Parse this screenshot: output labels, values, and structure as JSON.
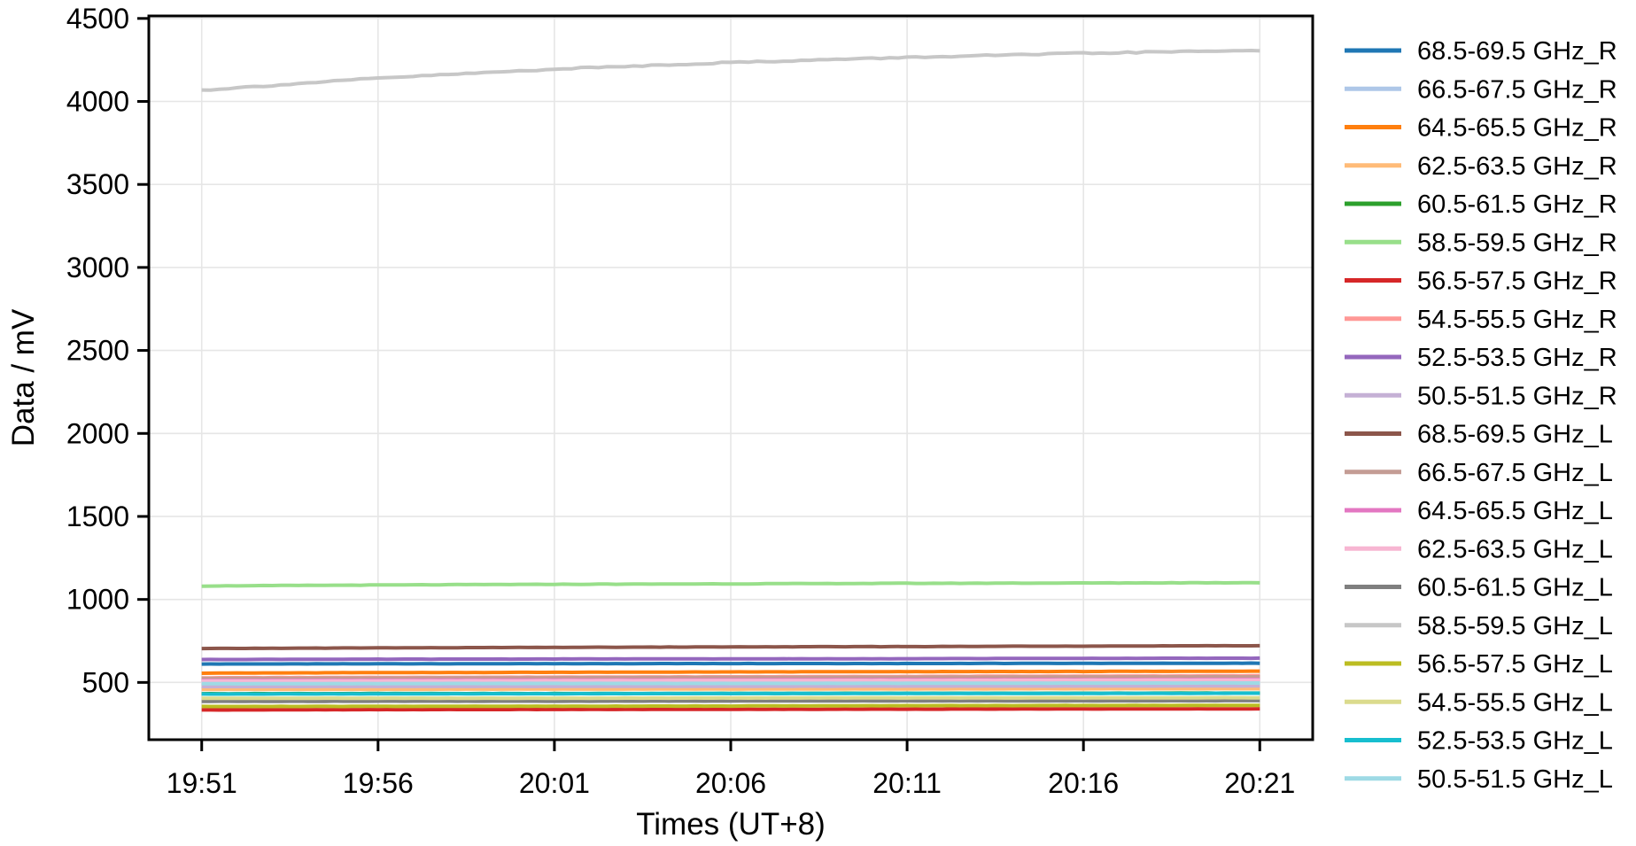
{
  "chart_data": {
    "type": "line",
    "title": "",
    "xlabel": "Times (UT+8)",
    "ylabel": "Data / mV",
    "x_tick_labels": [
      "19:51",
      "19:56",
      "20:01",
      "20:06",
      "20:11",
      "20:16",
      "20:21"
    ],
    "x_tick_minutes": [
      0,
      5,
      10,
      15,
      20,
      25,
      30
    ],
    "xlim_minutes": [
      -1.5,
      31.5
    ],
    "y_ticks": [
      500,
      1000,
      1500,
      2000,
      2500,
      3000,
      3500,
      4000,
      4500
    ],
    "ylim": [
      155,
      4515
    ],
    "grid": true,
    "legend_position": "right",
    "series": [
      {
        "name": "68.5-69.5 GHz_R",
        "color": "#1f77b4",
        "noise": 0.5,
        "values": [
          611,
          612,
          613,
          614,
          614,
          615,
          616
        ]
      },
      {
        "name": "66.5-67.5 GHz_R",
        "color": "#aec7e8",
        "noise": 0.5,
        "values": [
          495,
          496,
          497,
          498,
          499,
          499,
          500
        ]
      },
      {
        "name": "64.5-65.5 GHz_R",
        "color": "#ff7f0e",
        "noise": 0.6,
        "values": [
          556,
          559,
          561,
          563,
          565,
          566,
          568
        ]
      },
      {
        "name": "62.5-63.5 GHz_R",
        "color": "#ffbb78",
        "noise": 0.5,
        "values": [
          458,
          459,
          460,
          460,
          461,
          462,
          462
        ]
      },
      {
        "name": "60.5-61.5 GHz_R",
        "color": "#2ca02c",
        "noise": 0.5,
        "values": [
          432,
          433,
          433,
          434,
          435,
          435,
          436
        ]
      },
      {
        "name": "58.5-59.5 GHz_R",
        "color": "#98df8a",
        "noise": 1.2,
        "values": [
          1081,
          1087,
          1091,
          1094,
          1097,
          1099,
          1101
        ]
      },
      {
        "name": "56.5-57.5 GHz_R",
        "color": "#d62728",
        "noise": 0.5,
        "values": [
          334,
          336,
          337,
          338,
          339,
          340,
          341
        ]
      },
      {
        "name": "54.5-55.5 GHz_R",
        "color": "#ff9896",
        "noise": 0.6,
        "values": [
          528,
          530,
          532,
          534,
          536,
          538,
          540
        ]
      },
      {
        "name": "52.5-53.5 GHz_R",
        "color": "#9467bd",
        "noise": 0.5,
        "values": [
          638,
          640,
          641,
          642,
          643,
          645,
          646
        ]
      },
      {
        "name": "50.5-51.5 GHz_R",
        "color": "#c5b0d5",
        "noise": 0.5,
        "values": [
          475,
          476,
          476,
          477,
          478,
          478,
          479
        ]
      },
      {
        "name": "68.5-69.5 GHz_L",
        "color": "#8c564b",
        "noise": 0.8,
        "values": [
          704,
          708,
          711,
          714,
          716,
          719,
          721
        ]
      },
      {
        "name": "66.5-67.5 GHz_L",
        "color": "#c49c94",
        "noise": 0.5,
        "values": [
          524,
          526,
          528,
          530,
          531,
          533,
          534
        ]
      },
      {
        "name": "64.5-65.5 GHz_L",
        "color": "#e377c2",
        "noise": 0.5,
        "values": [
          512,
          513,
          514,
          515,
          516,
          517,
          518
        ]
      },
      {
        "name": "62.5-63.5 GHz_L",
        "color": "#f7b6d2",
        "noise": 0.5,
        "values": [
          508,
          509,
          510,
          511,
          512,
          513,
          514
        ]
      },
      {
        "name": "60.5-61.5 GHz_L",
        "color": "#7f7f7f",
        "noise": 0.5,
        "values": [
          386,
          387,
          387,
          388,
          389,
          389,
          390
        ]
      },
      {
        "name": "58.5-59.5 GHz_L",
        "color": "#c7c7c7",
        "noise": 4.0,
        "values": [
          4068,
          4140,
          4195,
          4235,
          4265,
          4290,
          4308
        ]
      },
      {
        "name": "56.5-57.5 GHz_L",
        "color": "#bcbd22",
        "noise": 0.6,
        "values": [
          355,
          356,
          357,
          358,
          360,
          361,
          362
        ]
      },
      {
        "name": "54.5-55.5 GHz_L",
        "color": "#dbdb8d",
        "noise": 0.5,
        "values": [
          404,
          405,
          405,
          406,
          407,
          407,
          408
        ]
      },
      {
        "name": "52.5-53.5 GHz_L",
        "color": "#17becf",
        "noise": 0.5,
        "values": [
          430,
          431,
          432,
          433,
          434,
          434,
          435
        ]
      },
      {
        "name": "50.5-51.5 GHz_L",
        "color": "#9edae5",
        "noise": 0.5,
        "values": [
          492,
          493,
          494,
          494,
          495,
          496,
          497
        ]
      }
    ]
  },
  "colors": {
    "background": "#ffffff",
    "spine": "#000000",
    "grid": "#e6e6e6",
    "text": "#000000"
  }
}
